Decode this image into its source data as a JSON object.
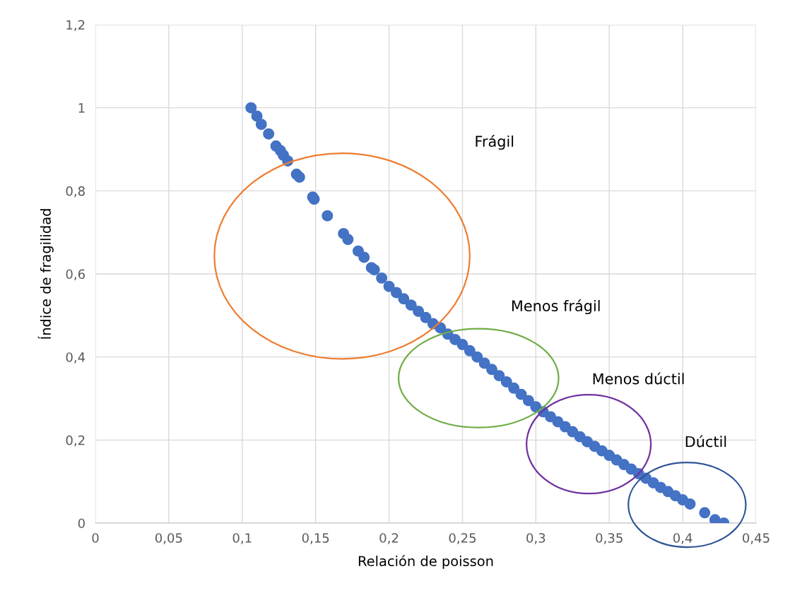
{
  "chart_data": {
    "type": "scatter",
    "xlabel": "Relación de poisson",
    "ylabel": "Índice de fragilidad",
    "xlim": [
      0,
      0.45
    ],
    "ylim": [
      0,
      1.2
    ],
    "xticks": [
      {
        "value": 0,
        "label": "0"
      },
      {
        "value": 0.05,
        "label": "0,05"
      },
      {
        "value": 0.1,
        "label": "0,1"
      },
      {
        "value": 0.15,
        "label": "0,15"
      },
      {
        "value": 0.2,
        "label": "0,2"
      },
      {
        "value": 0.25,
        "label": "0,25"
      },
      {
        "value": 0.3,
        "label": "0,3"
      },
      {
        "value": 0.35,
        "label": "0,35"
      },
      {
        "value": 0.4,
        "label": "0,4"
      },
      {
        "value": 0.45,
        "label": "0,45"
      }
    ],
    "yticks": [
      {
        "value": 0,
        "label": "0"
      },
      {
        "value": 0.2,
        "label": "0,2"
      },
      {
        "value": 0.4,
        "label": "0,4"
      },
      {
        "value": 0.6,
        "label": "0,6"
      },
      {
        "value": 0.8,
        "label": "0,8"
      },
      {
        "value": 1,
        "label": "1"
      },
      {
        "value": 1.2,
        "label": "1,2"
      }
    ],
    "grid": true,
    "marker": "circle",
    "legend": false,
    "series": [
      {
        "color": "#4472c4",
        "x": [
          0.106,
          0.11,
          0.113,
          0.118,
          0.123,
          0.126,
          0.128,
          0.131,
          0.137,
          0.139,
          0.148,
          0.149,
          0.158,
          0.169,
          0.172,
          0.179,
          0.183,
          0.188,
          0.19,
          0.195,
          0.2,
          0.205,
          0.21,
          0.215,
          0.22,
          0.225,
          0.23,
          0.235,
          0.24,
          0.245,
          0.25,
          0.255,
          0.26,
          0.265,
          0.27,
          0.275,
          0.28,
          0.285,
          0.29,
          0.295,
          0.3,
          0.305,
          0.31,
          0.315,
          0.32,
          0.325,
          0.33,
          0.335,
          0.34,
          0.345,
          0.35,
          0.355,
          0.36,
          0.365,
          0.37,
          0.375,
          0.38,
          0.385,
          0.39,
          0.395,
          0.4,
          0.405,
          0.415,
          0.422,
          0.428
        ],
        "values": [
          1.0,
          0.98,
          0.96,
          0.937,
          0.908,
          0.897,
          0.886,
          0.872,
          0.84,
          0.833,
          0.785,
          0.78,
          0.74,
          0.697,
          0.683,
          0.655,
          0.64,
          0.615,
          0.61,
          0.59,
          0.57,
          0.555,
          0.54,
          0.525,
          0.51,
          0.495,
          0.48,
          0.47,
          0.455,
          0.442,
          0.43,
          0.415,
          0.4,
          0.385,
          0.37,
          0.355,
          0.34,
          0.325,
          0.31,
          0.295,
          0.28,
          0.268,
          0.256,
          0.244,
          0.232,
          0.22,
          0.208,
          0.196,
          0.185,
          0.174,
          0.163,
          0.152,
          0.141,
          0.13,
          0.119,
          0.108,
          0.097,
          0.086,
          0.076,
          0.066,
          0.056,
          0.046,
          0.025,
          0.008,
          0.0
        ]
      }
    ],
    "annotations": [
      "Frágil",
      "Menos frágil",
      "Menos dúctil",
      "Dúctil"
    ]
  }
}
